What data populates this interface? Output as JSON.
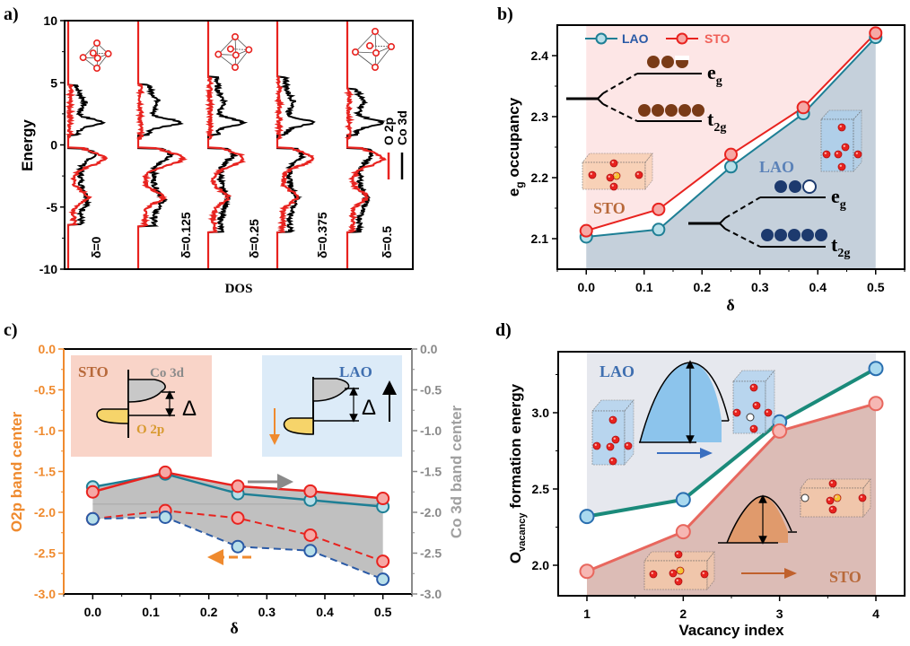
{
  "figure": {
    "panel_labels": [
      "a)",
      "b)",
      "c)",
      "d)"
    ]
  },
  "chart_data": [
    {
      "id": "a",
      "type": "line",
      "title": "",
      "xlabel": "DOS",
      "ylabel": "Energy",
      "ylim": [
        -10,
        10
      ],
      "yticks": [
        "10",
        "5",
        "0",
        "-5",
        "-10"
      ],
      "legend": {
        "placement": "right",
        "entries": [
          {
            "name": "O 2p",
            "color": "#e8231f"
          },
          {
            "name": "Co 3d",
            "color": "#000000"
          }
        ]
      },
      "series_labels": [
        "δ=0",
        "δ=0.125",
        "δ=0.25",
        "δ=0.375",
        "δ=0.5"
      ],
      "band_edges": [
        {
          "delta": 0,
          "top": 4.8,
          "bottom": -6.4
        },
        {
          "delta": 0.125,
          "top": 4.9,
          "bottom": -6.5
        },
        {
          "delta": 0.25,
          "top": 5.5,
          "bottom": -7.0
        },
        {
          "delta": 0.375,
          "top": 5.5,
          "bottom": -7.0
        },
        {
          "delta": 0.5,
          "top": 4.5,
          "bottom": -7.0
        }
      ]
    },
    {
      "id": "b",
      "type": "line",
      "title": "",
      "xlabel": "δ",
      "ylabel": "e_g occupancy",
      "ylabel_main": "e",
      "ylabel_sub": "g",
      "ylabel_rest": " occupancy",
      "xlim": [
        -0.05,
        0.55
      ],
      "ylim": [
        2.05,
        2.45
      ],
      "xticks": [
        "0.0",
        "0.1",
        "0.2",
        "0.3",
        "0.4",
        "0.5"
      ],
      "yticks": [
        "2.1",
        "2.2",
        "2.3",
        "2.4"
      ],
      "x": [
        0,
        0.125,
        0.25,
        0.375,
        0.5
      ],
      "series": [
        {
          "name": "LAO",
          "color": "#1e7f95",
          "fill": "#b8dfe9",
          "values": [
            2.103,
            2.115,
            2.218,
            2.305,
            2.43
          ]
        },
        {
          "name": "STO",
          "color": "#e8231f",
          "fill": "#f6a8a5",
          "values": [
            2.113,
            2.148,
            2.238,
            2.315,
            2.437
          ]
        }
      ],
      "legend": {
        "placement": "top-left"
      },
      "annotations": {
        "sto_label": "STO",
        "lao_label": "LAO",
        "eg": "e",
        "eg_sub": "g",
        "t2g": "t",
        "t2g_sub": "2g"
      }
    },
    {
      "id": "c",
      "type": "line",
      "title": "",
      "xlabel": "δ",
      "ylabel": "O2p band center",
      "ylabel_right": "Co 3d band center",
      "xlim": [
        -0.05,
        0.55
      ],
      "ylim": [
        -3.0,
        0.0
      ],
      "xticks": [
        "0.0",
        "0.1",
        "0.2",
        "0.3",
        "0.4",
        "0.5"
      ],
      "yticks": [
        "0.0",
        "-0.5",
        "-1.0",
        "-1.5",
        "-2.0",
        "-2.5",
        "-3.0"
      ],
      "x": [
        0,
        0.125,
        0.25,
        0.375,
        0.5
      ],
      "series": [
        {
          "name": "LAO Co 3d",
          "axis": "right",
          "style": "solid",
          "color": "#1e7f95",
          "fill": "#b8dfe9",
          "values": [
            -1.69,
            -1.53,
            -1.77,
            -1.85,
            -1.93
          ]
        },
        {
          "name": "STO Co 3d",
          "axis": "right",
          "style": "solid",
          "color": "#e8231f",
          "fill": "#f6a8a5",
          "values": [
            -1.75,
            -1.51,
            -1.68,
            -1.74,
            -1.83
          ]
        },
        {
          "name": "STO O 2p",
          "axis": "left",
          "style": "dashed",
          "color": "#e8231f",
          "fill": "#f6a8a5",
          "values": [
            -2.08,
            -1.98,
            -2.07,
            -2.28,
            -2.6
          ]
        },
        {
          "name": "LAO O 2p",
          "axis": "left",
          "style": "dashed",
          "color": "#2a5aa6",
          "fill": "#b8dfe9",
          "values": [
            -2.08,
            -2.06,
            -2.42,
            -2.47,
            -2.82
          ]
        }
      ],
      "annotations": {
        "sto_label": "STO",
        "lao_label": "LAO",
        "co3d": "Co 3d",
        "o2p": "O 2p",
        "delta": "Δ"
      },
      "colors": {
        "left_axis": "#ef8a2e",
        "right_axis": "#8a8a8a",
        "sto_box": "#f9d4c8",
        "lao_box": "#dcebf8",
        "gap_fill": "#bdbdbd"
      }
    },
    {
      "id": "d",
      "type": "line",
      "title": "",
      "xlabel": "Vacancy index",
      "ylabel": "O_vacancy formation energy",
      "ylabel_main": "O",
      "ylabel_sub": "vacancy",
      "ylabel_rest": " formation energy",
      "xlim": [
        0.5,
        4.5
      ],
      "ylim": [
        1.82,
        3.42
      ],
      "xticks": [
        "1",
        "2",
        "3",
        "4"
      ],
      "yticks": [
        "2.0",
        "2.5",
        "3.0"
      ],
      "x": [
        1,
        2,
        3,
        4
      ],
      "series": [
        {
          "name": "LAO",
          "color": "#1a8a7a",
          "fill": "#a9d9ef",
          "values": [
            2.32,
            2.43,
            2.94,
            3.29
          ]
        },
        {
          "name": "STO",
          "color": "#e8675e",
          "fill": "#f6b7b3",
          "values": [
            1.96,
            2.22,
            2.88,
            3.06
          ]
        }
      ],
      "annotations": {
        "lao_label": "LAO",
        "sto_label": "STO"
      }
    }
  ]
}
